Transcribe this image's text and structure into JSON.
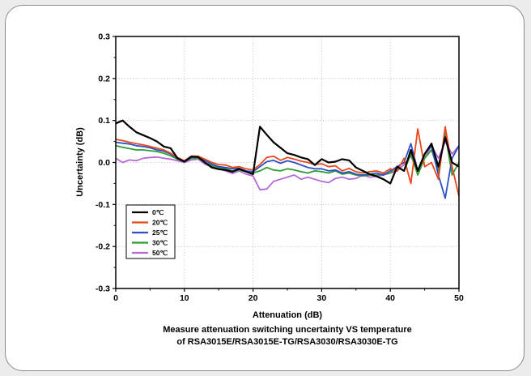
{
  "chart_data": {
    "type": "line",
    "xlabel": "Attenuation (dB)",
    "ylabel": "Uncertainty (dB)",
    "xlim": [
      0,
      50
    ],
    "ylim": [
      -0.3,
      0.3
    ],
    "x_ticks": [
      "0",
      "10",
      "20",
      "30",
      "40",
      "50"
    ],
    "y_ticks": [
      "0.3",
      "0.2",
      "0.1",
      "0.0",
      "-0.1",
      "-0.2",
      "-0.3"
    ],
    "grid": true,
    "legend_position": "bottom-left",
    "caption_lines": [
      "Measure attenuation switching uncertainty VS temperature",
      "of RSA3015E/RSA3015E-TG/RSA3030/RSA3030E-TG"
    ],
    "series": [
      {
        "name": "0℃",
        "color": "#000000",
        "x": [
          0,
          1,
          2,
          3,
          4,
          5,
          6,
          7,
          8,
          9,
          10,
          11,
          12,
          13,
          14,
          15,
          16,
          17,
          18,
          19,
          20,
          21,
          22,
          23,
          24,
          25,
          26,
          27,
          28,
          29,
          30,
          31,
          32,
          33,
          34,
          35,
          36,
          37,
          38,
          39,
          40,
          41,
          42,
          43,
          44,
          45,
          46,
          47,
          48,
          49,
          50
        ],
        "y": [
          0.093,
          0.1,
          0.085,
          0.072,
          0.065,
          0.058,
          0.05,
          0.038,
          0.034,
          0.01,
          0.002,
          0.014,
          0.013,
          0.0,
          -0.012,
          -0.016,
          -0.018,
          -0.022,
          -0.015,
          -0.022,
          -0.028,
          0.085,
          0.066,
          0.048,
          0.035,
          0.022,
          0.018,
          0.012,
          0.008,
          -0.006,
          0.008,
          0.0,
          0.002,
          0.008,
          0.005,
          -0.012,
          -0.02,
          -0.028,
          -0.033,
          -0.04,
          -0.05,
          -0.01,
          -0.02,
          0.03,
          -0.02,
          0.02,
          0.045,
          -0.01,
          0.06,
          0.0,
          -0.01
        ]
      },
      {
        "name": "20℃",
        "color": "#e8481c",
        "x": [
          0,
          1,
          2,
          3,
          4,
          5,
          6,
          7,
          8,
          9,
          10,
          11,
          12,
          13,
          14,
          15,
          16,
          17,
          18,
          19,
          20,
          21,
          22,
          23,
          24,
          25,
          26,
          27,
          28,
          29,
          30,
          31,
          32,
          33,
          34,
          35,
          36,
          37,
          38,
          39,
          40,
          41,
          42,
          43,
          44,
          45,
          46,
          47,
          48,
          49,
          50
        ],
        "y": [
          0.055,
          0.052,
          0.048,
          0.045,
          0.042,
          0.038,
          0.034,
          0.03,
          0.022,
          0.012,
          0.004,
          0.015,
          0.015,
          0.008,
          0.0,
          -0.005,
          -0.006,
          -0.012,
          -0.01,
          -0.015,
          -0.018,
          -0.005,
          0.012,
          0.015,
          0.005,
          0.012,
          0.008,
          0.003,
          0.0,
          -0.005,
          -0.003,
          -0.01,
          -0.008,
          -0.02,
          -0.014,
          -0.022,
          -0.025,
          -0.022,
          -0.02,
          -0.025,
          -0.015,
          -0.02,
          0.01,
          -0.05,
          0.08,
          -0.01,
          0.0,
          -0.04,
          0.085,
          -0.01,
          -0.08
        ]
      },
      {
        "name": "25℃",
        "color": "#2b50c8",
        "x": [
          0,
          1,
          2,
          3,
          4,
          5,
          6,
          7,
          8,
          9,
          10,
          11,
          12,
          13,
          14,
          15,
          16,
          17,
          18,
          19,
          20,
          21,
          22,
          23,
          24,
          25,
          26,
          27,
          28,
          29,
          30,
          31,
          32,
          33,
          34,
          35,
          36,
          37,
          38,
          39,
          40,
          41,
          42,
          43,
          44,
          45,
          46,
          47,
          48,
          49,
          50
        ],
        "y": [
          0.048,
          0.046,
          0.044,
          0.04,
          0.038,
          0.035,
          0.03,
          0.027,
          0.02,
          0.01,
          0.002,
          0.012,
          0.013,
          0.005,
          -0.004,
          -0.01,
          -0.012,
          -0.015,
          -0.014,
          -0.02,
          -0.022,
          -0.01,
          0.002,
          0.005,
          -0.002,
          0.004,
          0.0,
          -0.006,
          -0.012,
          -0.015,
          -0.015,
          -0.02,
          -0.018,
          -0.025,
          -0.022,
          -0.028,
          -0.03,
          -0.028,
          -0.025,
          -0.03,
          -0.02,
          -0.01,
          0.0,
          0.045,
          -0.02,
          0.02,
          0.04,
          -0.03,
          -0.085,
          0.01,
          0.04
        ]
      },
      {
        "name": "30℃",
        "color": "#2f9a34",
        "x": [
          0,
          1,
          2,
          3,
          4,
          5,
          6,
          7,
          8,
          9,
          10,
          11,
          12,
          13,
          14,
          15,
          16,
          17,
          18,
          19,
          20,
          21,
          22,
          23,
          24,
          25,
          26,
          27,
          28,
          29,
          30,
          31,
          32,
          33,
          34,
          35,
          36,
          37,
          38,
          39,
          40,
          41,
          42,
          43,
          44,
          45,
          46,
          47,
          48,
          49,
          50
        ],
        "y": [
          0.04,
          0.036,
          0.033,
          0.03,
          0.03,
          0.028,
          0.026,
          0.022,
          0.016,
          0.008,
          0.002,
          0.01,
          0.01,
          0.0,
          -0.008,
          -0.012,
          -0.015,
          -0.02,
          -0.018,
          -0.022,
          -0.025,
          -0.02,
          -0.012,
          -0.018,
          -0.02,
          -0.015,
          -0.018,
          -0.022,
          -0.025,
          -0.02,
          -0.022,
          -0.025,
          -0.02,
          -0.028,
          -0.025,
          -0.03,
          -0.032,
          -0.03,
          -0.03,
          -0.028,
          -0.025,
          -0.01,
          -0.02,
          0.02,
          -0.03,
          0.01,
          0.03,
          -0.02,
          0.07,
          -0.03,
          0.0
        ]
      },
      {
        "name": "50℃",
        "color": "#b46ad6",
        "x": [
          0,
          1,
          2,
          3,
          4,
          5,
          6,
          7,
          8,
          9,
          10,
          11,
          12,
          13,
          14,
          15,
          16,
          17,
          18,
          19,
          20,
          21,
          22,
          23,
          24,
          25,
          26,
          27,
          28,
          29,
          30,
          31,
          32,
          33,
          34,
          35,
          36,
          37,
          38,
          39,
          40,
          41,
          42,
          43,
          44,
          45,
          46,
          47,
          48,
          49,
          50
        ],
        "y": [
          0.01,
          0.0,
          0.006,
          0.004,
          0.01,
          0.012,
          0.013,
          0.01,
          0.008,
          0.004,
          0.0,
          0.006,
          0.008,
          -0.004,
          -0.01,
          -0.015,
          -0.02,
          -0.026,
          -0.02,
          -0.028,
          -0.032,
          -0.065,
          -0.063,
          -0.045,
          -0.04,
          -0.035,
          -0.03,
          -0.04,
          -0.035,
          -0.04,
          -0.045,
          -0.048,
          -0.038,
          -0.035,
          -0.04,
          -0.038,
          -0.03,
          -0.035,
          -0.033,
          -0.03,
          -0.025,
          -0.02,
          -0.005,
          0.015,
          -0.02,
          0.01,
          0.04,
          0.01,
          0.05,
          0.02,
          0.04
        ]
      }
    ]
  }
}
